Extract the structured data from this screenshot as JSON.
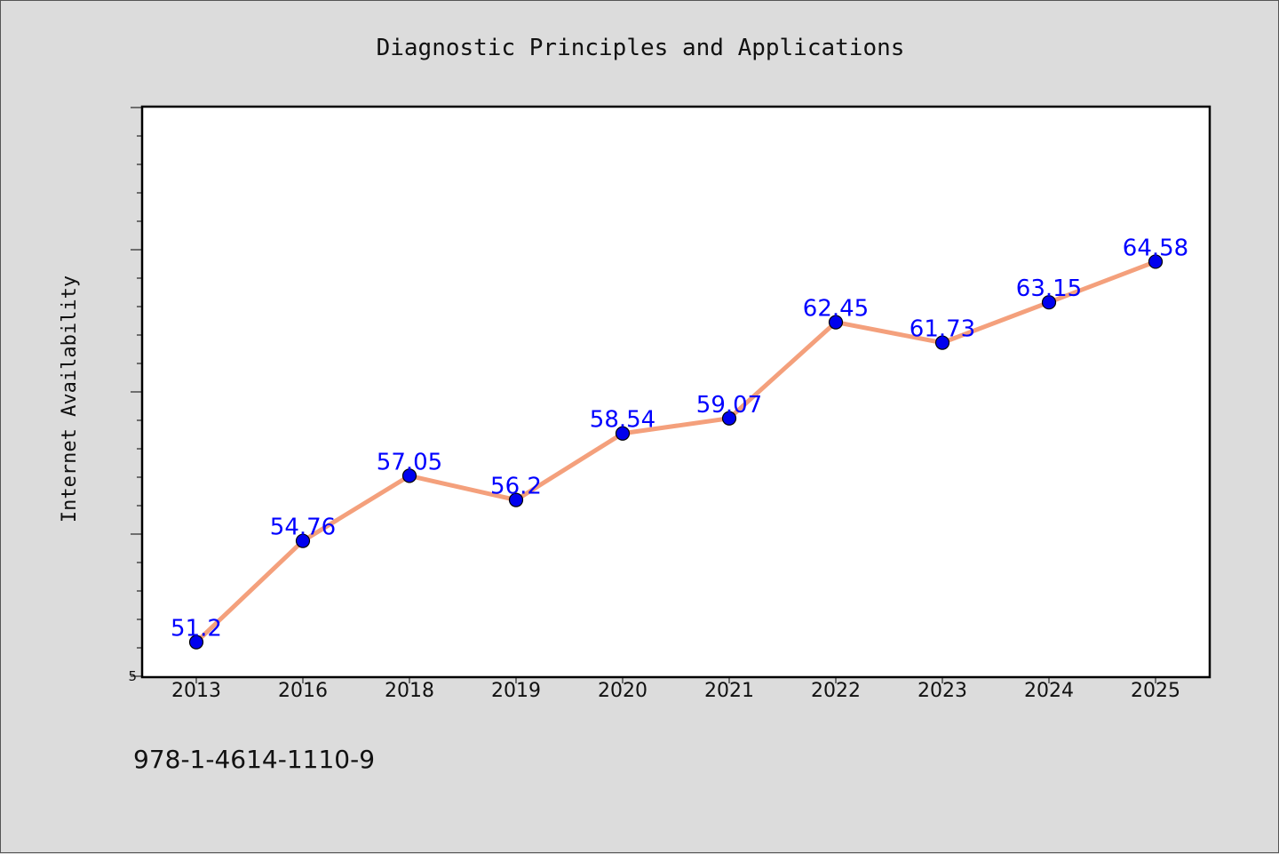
{
  "chart_data": {
    "type": "line",
    "title": "Diagnostic Principles and Applications",
    "xlabel": "",
    "ylabel": "Internet Availability",
    "categories": [
      "2013",
      "2016",
      "2018",
      "2019",
      "2020",
      "2021",
      "2022",
      "2023",
      "2024",
      "2025"
    ],
    "series": [
      {
        "values": [
          51.2,
          54.76,
          57.05,
          56.2,
          58.54,
          59.07,
          62.45,
          61.73,
          63.15,
          64.58
        ]
      }
    ],
    "ylim": [
      50.0,
      70.0
    ],
    "y_tick_labels": [
      "5"
    ],
    "grid": false,
    "legend": "none",
    "line_color": "#f4a07c",
    "marker_color": "#0000ee",
    "label_color": "#0000ff"
  },
  "footer": {
    "isbn": "978-1-4614-1110-9"
  }
}
